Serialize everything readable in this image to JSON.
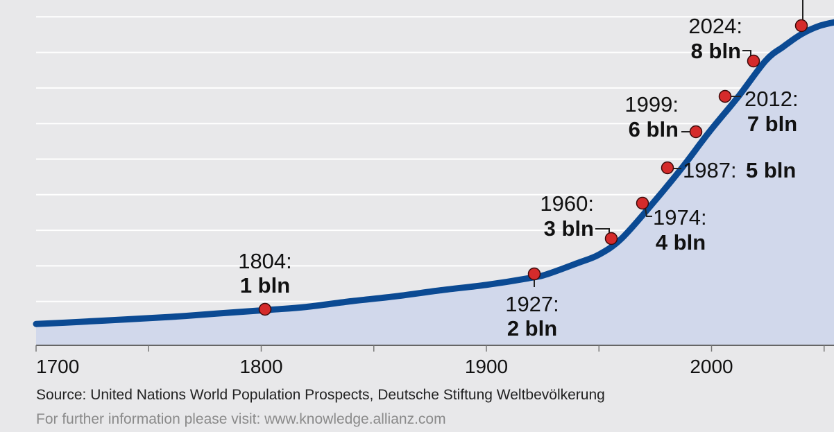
{
  "chart_data": {
    "type": "area",
    "title": "",
    "xlabel": "",
    "ylabel": "",
    "xlim": [
      1700,
      2056
    ],
    "ylim": [
      0,
      8.9
    ],
    "x_ticks": [
      "1700",
      "1800",
      "1900",
      "2000"
    ],
    "grid": true,
    "series": [
      {
        "values_x": [
          1700,
          1720,
          1740,
          1760,
          1780,
          1804,
          1820,
          1840,
          1860,
          1880,
          1900,
          1920,
          1927,
          1940,
          1950,
          1960,
          1974,
          1987,
          1999,
          2012,
          2024,
          2032,
          2040,
          2048,
          2056
        ],
        "values_y": [
          0.6,
          0.66,
          0.73,
          0.8,
          0.89,
          1.0,
          1.08,
          1.24,
          1.38,
          1.55,
          1.7,
          1.9,
          2.0,
          2.3,
          2.55,
          3.0,
          4.0,
          5.0,
          6.0,
          7.0,
          8.0,
          8.4,
          8.75,
          8.98,
          9.1
        ]
      }
    ],
    "milestones": [
      {
        "year": 1804,
        "value": 1,
        "year_label": "1804:",
        "value_label": "1 bln"
      },
      {
        "year": 1927,
        "value": 2,
        "year_label": "1927:",
        "value_label": "2 bln"
      },
      {
        "year": 1960,
        "value": 3,
        "year_label": "1960:",
        "value_label": "3 bln"
      },
      {
        "year": 1974,
        "value": 4,
        "year_label": "1974:",
        "value_label": "4 bln"
      },
      {
        "year": 1987,
        "value": 5,
        "year_label": "1987:",
        "value_label": "5 bln"
      },
      {
        "year": 1999,
        "value": 6,
        "year_label": "1999:",
        "value_label": "6 bln"
      },
      {
        "year": 2012,
        "value": 7,
        "year_label": "2012:",
        "value_label": "7 bln"
      },
      {
        "year": 2024,
        "value": 8,
        "year_label": "2024:",
        "value_label": "8 bln"
      },
      {
        "year": 2050,
        "value": 9,
        "year_label": "",
        "value_label": ""
      }
    ],
    "colors": {
      "background": "#e8e8ea",
      "area_fill": "#d1d8eb",
      "line": "#0b4a93",
      "marker_fill": "#d52b2b",
      "marker_stroke": "#3a0a0a",
      "grid": "#ffffff"
    }
  },
  "footer": {
    "source": "Source: United Nations World Population Prospects, Deutsche Stiftung Weltbevölkerung",
    "info": "For further information please visit: www.knowledge.allianz.com"
  }
}
